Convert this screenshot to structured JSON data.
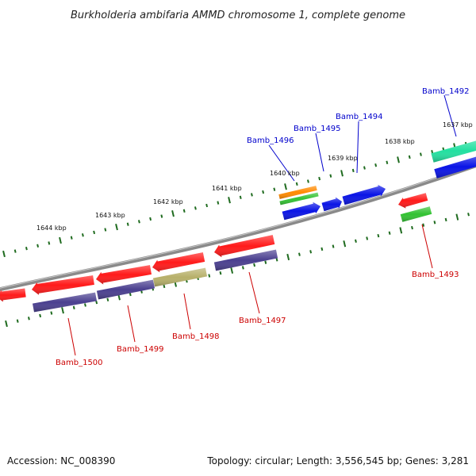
{
  "title": "Burkholderia ambifaria AMMD chromosome 1, complete genome",
  "footer": {
    "accession": "Accession: NC_008390",
    "topology": "Topology: circular; Length: 3,556,545 bp; Genes: 3,281"
  },
  "colors": {
    "backbone": "#8a8a8a",
    "tick": "#1f6b1f",
    "label_top": "#0000cc",
    "label_bottom": "#cc0000",
    "red": "#ff1a1a",
    "navy": "#4a3f8f",
    "olive": "#b7b06a",
    "blue": "#0a14e6",
    "orange": "#ff8a00",
    "green": "#33c233",
    "teal": "#22e0a0"
  },
  "kbp_ticks": [
    {
      "label": "1637 kbp"
    },
    {
      "label": "1638 kbp"
    },
    {
      "label": "1639 kbp"
    },
    {
      "label": "1640 kbp"
    },
    {
      "label": "1641 kbp"
    },
    {
      "label": "1642 kbp"
    },
    {
      "label": "1643 kbp"
    },
    {
      "label": "1644 kbp"
    }
  ],
  "gene_labels": {
    "top": [
      "Bamb_1492",
      "Bamb_1494",
      "Bamb_1495",
      "Bamb_1496"
    ],
    "bottom": [
      "Bamb_1493",
      "Bamb_1497",
      "Bamb_1498",
      "Bamb_1499",
      "Bamb_1500"
    ]
  }
}
